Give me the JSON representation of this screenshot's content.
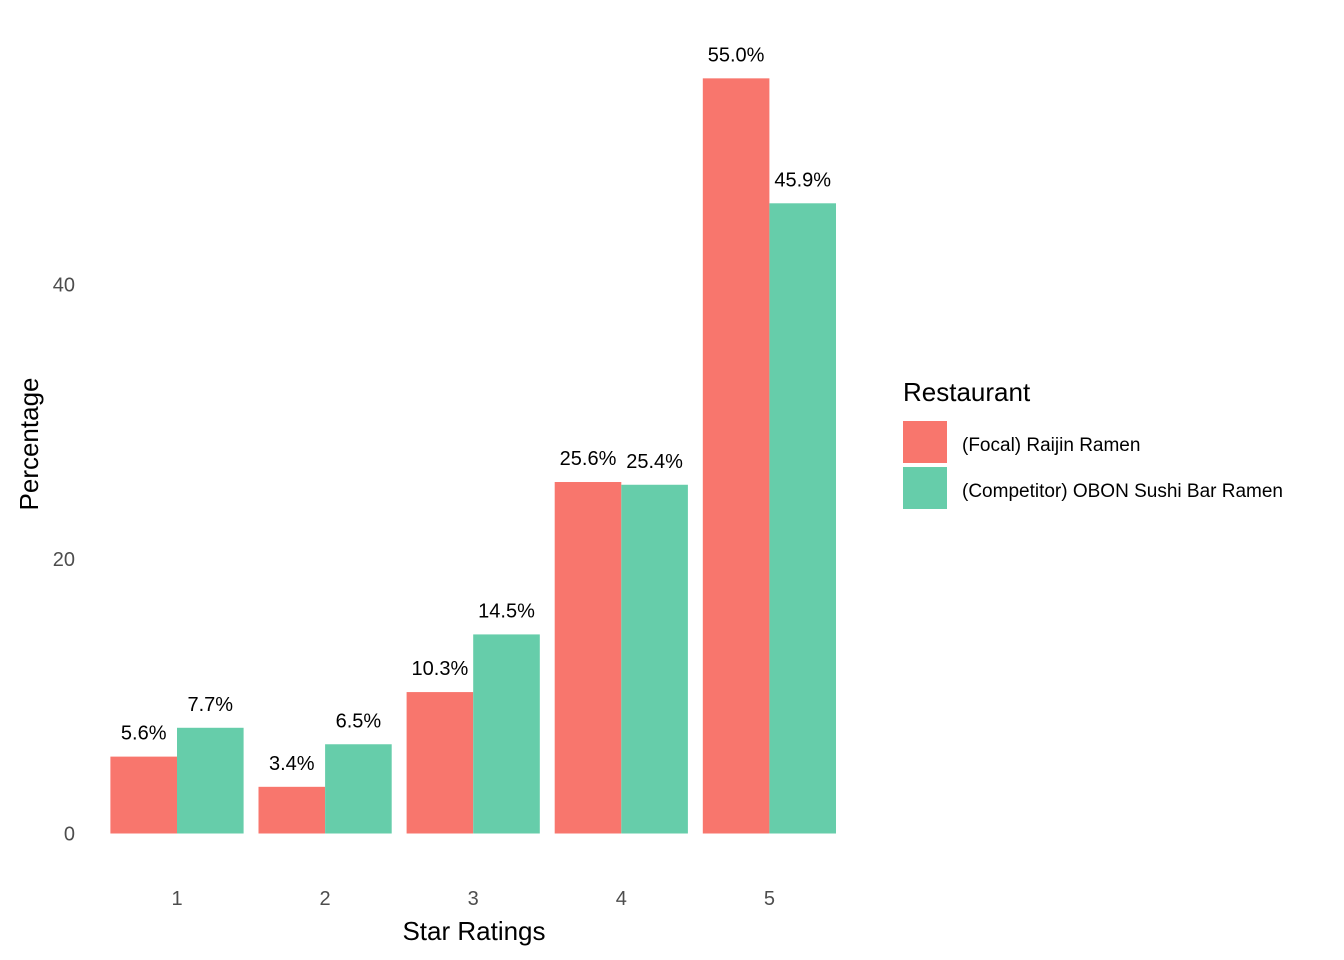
{
  "chart_data": {
    "type": "bar",
    "xlabel": "Star Ratings",
    "ylabel": "Percentage",
    "categories": [
      "1",
      "2",
      "3",
      "4",
      "5"
    ],
    "ylim": [
      0,
      55
    ],
    "yticks": [
      0,
      20,
      40
    ],
    "grid": false,
    "legend": {
      "title": "Restaurant",
      "placement": "right"
    },
    "series": [
      {
        "name": "(Focal) Raijin Ramen",
        "color": "#F8766D",
        "values": [
          5.6,
          3.4,
          10.3,
          25.6,
          55.0
        ],
        "labels": [
          "5.6%",
          "3.4%",
          "10.3%",
          "25.6%",
          "55.0%"
        ]
      },
      {
        "name": "(Competitor) OBON Sushi Bar Ramen",
        "color": "#66CDAA",
        "values": [
          7.7,
          6.5,
          14.5,
          25.4,
          45.9
        ],
        "labels": [
          "7.7%",
          "6.5%",
          "14.5%",
          "25.4%",
          "45.9%"
        ]
      }
    ]
  }
}
